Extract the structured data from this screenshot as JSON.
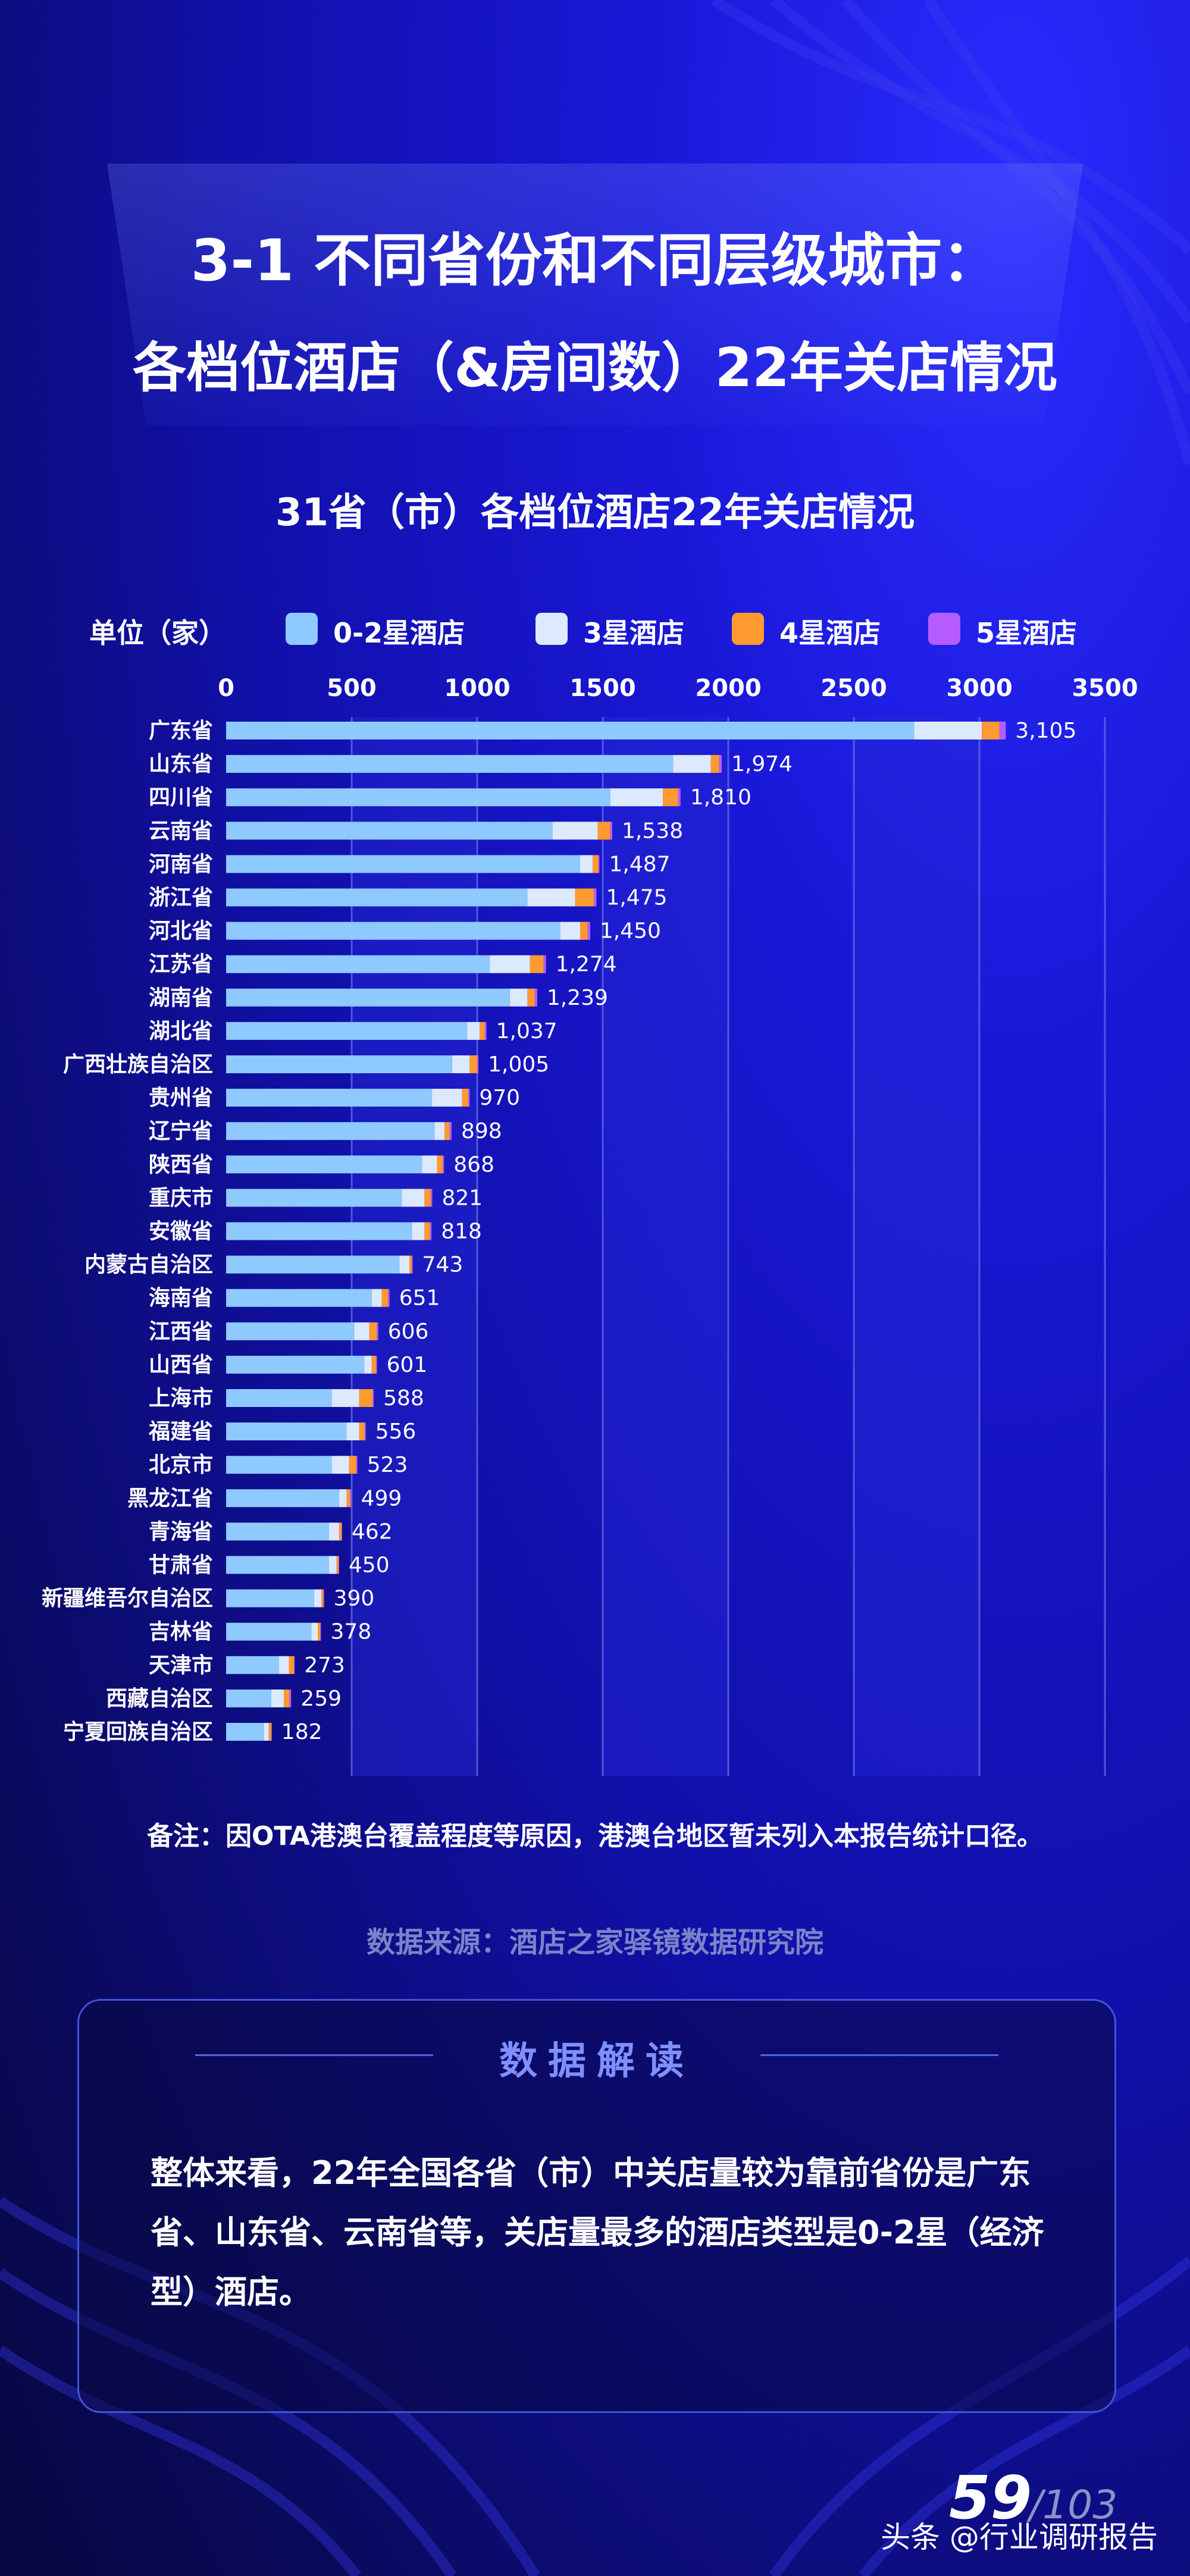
{
  "title": {
    "line1": "3-1 不同省份和不同层级城市：",
    "line2": "各档位酒店（&房间数）22年关店情况"
  },
  "chart_data": {
    "type": "bar",
    "stacked": true,
    "orientation": "horizontal",
    "title": "31省（市）各档位酒店22年关店情况",
    "unit_label": "单位（家）",
    "xlim": [
      0,
      3500
    ],
    "xticks": [
      0,
      500,
      1000,
      1500,
      2000,
      2500,
      3000,
      3500
    ],
    "xtick_labels": [
      "0",
      "500",
      "1000",
      "1500",
      "2000",
      "2500",
      "3000",
      "3500"
    ],
    "categories": [
      "广东省",
      "山东省",
      "四川省",
      "云南省",
      "河南省",
      "浙江省",
      "河北省",
      "江苏省",
      "湖南省",
      "湖北省",
      "广西壮族自治区",
      "贵州省",
      "辽宁省",
      "陕西省",
      "重庆市",
      "安徽省",
      "内蒙古自治区",
      "海南省",
      "江西省",
      "山西省",
      "上海市",
      "福建省",
      "北京市",
      "黑龙江省",
      "青海省",
      "甘肃省",
      "新疆维吾尔自治区",
      "吉林省",
      "天津市",
      "西藏自治区",
      "宁夏回族自治区"
    ],
    "totals": [
      3105,
      1974,
      1810,
      1538,
      1487,
      1475,
      1450,
      1274,
      1239,
      1037,
      1005,
      970,
      898,
      868,
      821,
      818,
      743,
      651,
      606,
      601,
      588,
      556,
      523,
      499,
      462,
      450,
      390,
      378,
      273,
      259,
      182
    ],
    "total_labels": [
      "3,105",
      "1,974",
      "1,810",
      "1,538",
      "1,487",
      "1,475",
      "1,450",
      "1,274",
      "1,239",
      "1,037",
      "1,005",
      "970",
      "898",
      "868",
      "821",
      "818",
      "743",
      "651",
      "606",
      "601",
      "588",
      "556",
      "523",
      "499",
      "462",
      "450",
      "390",
      "378",
      "273",
      "259",
      "182"
    ],
    "series": [
      {
        "name": "0-2星酒店",
        "color": "#8ec9ff",
        "values": [
          2740,
          1780,
          1530,
          1300,
          1410,
          1200,
          1330,
          1050,
          1130,
          960,
          900,
          820,
          830,
          780,
          700,
          740,
          690,
          580,
          510,
          550,
          420,
          480,
          420,
          450,
          410,
          410,
          350,
          340,
          210,
          180,
          150
        ]
      },
      {
        "name": "3星酒店",
        "color": "#dce9ff",
        "values": [
          270,
          150,
          210,
          180,
          50,
          190,
          80,
          160,
          70,
          50,
          70,
          120,
          40,
          60,
          90,
          50,
          40,
          40,
          60,
          30,
          110,
          50,
          70,
          30,
          40,
          30,
          30,
          25,
          40,
          50,
          20
        ]
      },
      {
        "name": "4星酒店",
        "color": "#ff9a2e",
        "values": [
          70,
          34,
          60,
          50,
          22,
          75,
          30,
          54,
          29,
          20,
          30,
          25,
          20,
          23,
          25,
          22,
          10,
          25,
          30,
          17,
          53,
          21,
          28,
          14,
          10,
          8,
          8,
          10,
          20,
          22,
          10
        ]
      },
      {
        "name": "5星酒店",
        "color": "#b45cff",
        "values": [
          25,
          10,
          10,
          8,
          5,
          10,
          10,
          10,
          10,
          7,
          5,
          5,
          8,
          5,
          6,
          6,
          3,
          6,
          6,
          4,
          5,
          5,
          5,
          5,
          2,
          2,
          2,
          3,
          3,
          7,
          2
        ]
      }
    ]
  },
  "note": "备注：因OTA港澳台覆盖程度等原因，港澳台地区暂未列入本报告统计口径。",
  "source": "数据来源：酒店之家驿镜数据研究院",
  "panel": {
    "title": "数据解读",
    "text": "整体来看，22年全国各省（市）中关店量较为靠前省份是广东省、山东省、云南省等，关店量最多的酒店类型是0-2星（经济型）酒店。"
  },
  "footer": {
    "page_num": "59",
    "page_total": "/103",
    "watermark": "头条 @行业调研报告"
  }
}
